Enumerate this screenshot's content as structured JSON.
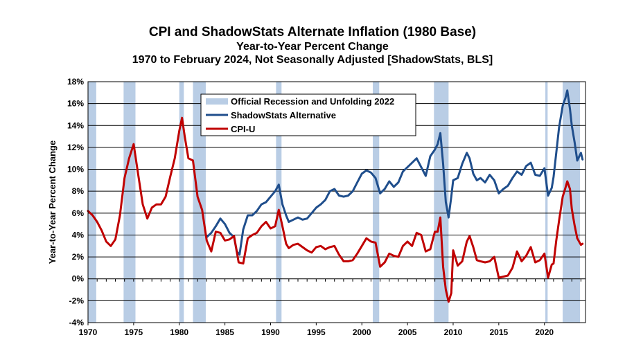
{
  "chart_data": {
    "type": "line",
    "title": "CPI and ShadowStats Alternate Inflation (1980 Base)",
    "subtitle": "Year-to-Year Percent Change",
    "subtitle2": "1970 to February 2024, Not Seasonally Adjusted  [ShadowStats, BLS]",
    "xlabel": "",
    "ylabel": "Year-to-Year Percent Change",
    "xlim": [
      1970,
      2024.5
    ],
    "ylim": [
      -4,
      18
    ],
    "xticks": [
      1970,
      1975,
      1980,
      1985,
      1990,
      1995,
      2000,
      2005,
      2010,
      2015,
      2020
    ],
    "xtick_labels": [
      "1970",
      "1975",
      "1980",
      "1985",
      "1990",
      "1995",
      "2000",
      "2005",
      "2010",
      "2015",
      "2020"
    ],
    "yticks": [
      -4,
      -2,
      0,
      2,
      4,
      6,
      8,
      10,
      12,
      14,
      16,
      18
    ],
    "ytick_labels": [
      "-4%",
      "-2%",
      "0%",
      "2%",
      "4%",
      "6%",
      "8%",
      "10%",
      "12%",
      "14%",
      "16%",
      "18%"
    ],
    "grid": true,
    "legend_position": "top-left",
    "recessions": {
      "name": "Official Recession and Unfolding 2022",
      "color": "#b9cde5",
      "periods": [
        [
          1970.0,
          1970.9
        ],
        [
          1973.9,
          1975.2
        ],
        [
          1980.0,
          1980.5
        ],
        [
          1981.5,
          1982.9
        ],
        [
          1990.6,
          1991.2
        ],
        [
          2001.2,
          2001.9
        ],
        [
          2007.9,
          2009.5
        ],
        [
          2020.1,
          2020.35
        ],
        [
          2022.0,
          2023.9
        ]
      ]
    },
    "series": [
      {
        "name": "ShadowStats Alternative",
        "color": "#1f4e8c",
        "x": [
          1983.0,
          1983.5,
          1984.0,
          1984.5,
          1985.0,
          1985.5,
          1986.0,
          1986.3,
          1986.6,
          1987.0,
          1987.5,
          1988.0,
          1988.5,
          1989.0,
          1989.5,
          1990.0,
          1990.5,
          1990.9,
          1991.3,
          1991.7,
          1992.0,
          1992.5,
          1993.0,
          1993.5,
          1994.0,
          1994.5,
          1995.0,
          1995.5,
          1996.0,
          1996.5,
          1997.0,
          1997.5,
          1998.0,
          1998.5,
          1999.0,
          1999.5,
          2000.0,
          2000.5,
          2001.0,
          2001.5,
          2002.0,
          2002.5,
          2003.0,
          2003.5,
          2004.0,
          2004.5,
          2005.0,
          2005.5,
          2006.0,
          2006.5,
          2007.0,
          2007.5,
          2008.0,
          2008.3,
          2008.6,
          2008.9,
          2009.2,
          2009.5,
          2009.8,
          2010.0,
          2010.5,
          2011.0,
          2011.5,
          2011.8,
          2012.2,
          2012.6,
          2013.0,
          2013.5,
          2014.0,
          2014.5,
          2015.0,
          2015.5,
          2016.0,
          2016.5,
          2017.0,
          2017.5,
          2018.0,
          2018.5,
          2019.0,
          2019.5,
          2020.0,
          2020.4,
          2020.8,
          2021.0,
          2021.3,
          2021.6,
          2022.0,
          2022.3,
          2022.5,
          2022.8,
          2023.0,
          2023.3,
          2023.6,
          2024.0,
          2024.17
        ],
        "values": [
          3.8,
          4.2,
          4.8,
          5.5,
          5.0,
          4.2,
          3.8,
          2.5,
          2.2,
          4.5,
          5.8,
          5.8,
          6.2,
          6.8,
          7.0,
          7.5,
          8.0,
          8.6,
          6.8,
          5.8,
          5.2,
          5.4,
          5.6,
          5.4,
          5.5,
          6.0,
          6.5,
          6.8,
          7.2,
          8.0,
          8.2,
          7.6,
          7.5,
          7.6,
          8.0,
          8.8,
          9.6,
          9.9,
          9.7,
          9.2,
          7.8,
          8.2,
          8.9,
          8.4,
          8.8,
          9.8,
          10.2,
          10.6,
          11.0,
          10.2,
          9.4,
          11.2,
          11.8,
          12.3,
          13.3,
          10.5,
          7.0,
          5.6,
          7.5,
          9.0,
          9.2,
          10.5,
          11.5,
          11.0,
          9.6,
          9.0,
          9.2,
          8.8,
          9.5,
          9.0,
          7.8,
          8.2,
          8.5,
          9.2,
          9.8,
          9.5,
          10.3,
          10.6,
          9.5,
          9.4,
          10.1,
          7.6,
          8.3,
          9.3,
          11.5,
          13.8,
          15.8,
          16.5,
          17.2,
          15.5,
          14.0,
          12.5,
          10.8,
          11.5,
          10.9
        ]
      },
      {
        "name": "CPI-U",
        "color": "#c00000",
        "x": [
          1970.0,
          1970.5,
          1971.0,
          1971.5,
          1972.0,
          1972.5,
          1973.0,
          1973.5,
          1974.0,
          1974.5,
          1975.0,
          1975.5,
          1976.0,
          1976.5,
          1977.0,
          1977.5,
          1978.0,
          1978.5,
          1979.0,
          1979.5,
          1980.0,
          1980.3,
          1980.6,
          1981.0,
          1981.5,
          1982.0,
          1982.5,
          1983.0,
          1983.5,
          1984.0,
          1984.5,
          1985.0,
          1985.5,
          1986.0,
          1986.5,
          1987.0,
          1987.5,
          1988.0,
          1988.5,
          1989.0,
          1989.5,
          1990.0,
          1990.5,
          1990.9,
          1991.3,
          1991.7,
          1992.0,
          1992.5,
          1993.0,
          1993.5,
          1994.0,
          1994.5,
          1995.0,
          1995.5,
          1996.0,
          1996.5,
          1997.0,
          1997.5,
          1998.0,
          1998.5,
          1999.0,
          1999.5,
          2000.0,
          2000.5,
          2001.0,
          2001.5,
          2002.0,
          2002.5,
          2003.0,
          2003.5,
          2004.0,
          2004.5,
          2005.0,
          2005.5,
          2006.0,
          2006.5,
          2007.0,
          2007.5,
          2008.0,
          2008.3,
          2008.6,
          2008.9,
          2009.2,
          2009.5,
          2009.8,
          2010.0,
          2010.5,
          2011.0,
          2011.5,
          2011.8,
          2012.2,
          2012.6,
          2013.0,
          2013.5,
          2014.0,
          2014.5,
          2015.0,
          2015.5,
          2016.0,
          2016.5,
          2017.0,
          2017.5,
          2018.0,
          2018.5,
          2019.0,
          2019.5,
          2020.0,
          2020.4,
          2020.8,
          2021.0,
          2021.3,
          2021.6,
          2022.0,
          2022.3,
          2022.5,
          2022.8,
          2023.0,
          2023.3,
          2023.6,
          2024.0,
          2024.17
        ],
        "values": [
          6.2,
          5.8,
          5.2,
          4.4,
          3.4,
          3.0,
          3.6,
          5.8,
          9.2,
          11.0,
          12.3,
          9.5,
          6.8,
          5.5,
          6.5,
          6.8,
          6.8,
          7.5,
          9.3,
          11.0,
          13.5,
          14.7,
          13.0,
          11.0,
          10.8,
          7.5,
          6.3,
          3.5,
          2.5,
          4.3,
          4.2,
          3.5,
          3.6,
          3.9,
          1.5,
          1.4,
          3.7,
          4.0,
          4.2,
          4.8,
          5.2,
          4.6,
          4.8,
          6.3,
          4.8,
          3.2,
          2.8,
          3.1,
          3.2,
          2.9,
          2.6,
          2.4,
          2.9,
          3.0,
          2.7,
          2.9,
          3.0,
          2.2,
          1.6,
          1.6,
          1.7,
          2.3,
          3.0,
          3.7,
          3.4,
          3.3,
          1.1,
          1.5,
          2.3,
          2.1,
          2.0,
          3.0,
          3.4,
          3.0,
          4.2,
          4.0,
          2.5,
          2.7,
          4.3,
          4.3,
          5.6,
          1.1,
          -1.0,
          -2.1,
          -1.3,
          2.6,
          1.2,
          1.6,
          3.4,
          3.9,
          2.9,
          1.7,
          1.6,
          1.5,
          1.6,
          2.0,
          0.1,
          0.2,
          0.3,
          1.0,
          2.5,
          1.6,
          2.1,
          2.9,
          1.5,
          1.7,
          2.3,
          0.1,
          1.3,
          1.4,
          3.5,
          5.3,
          7.5,
          8.3,
          8.9,
          8.2,
          6.4,
          4.9,
          3.7,
          3.1,
          3.2
        ]
      }
    ]
  }
}
